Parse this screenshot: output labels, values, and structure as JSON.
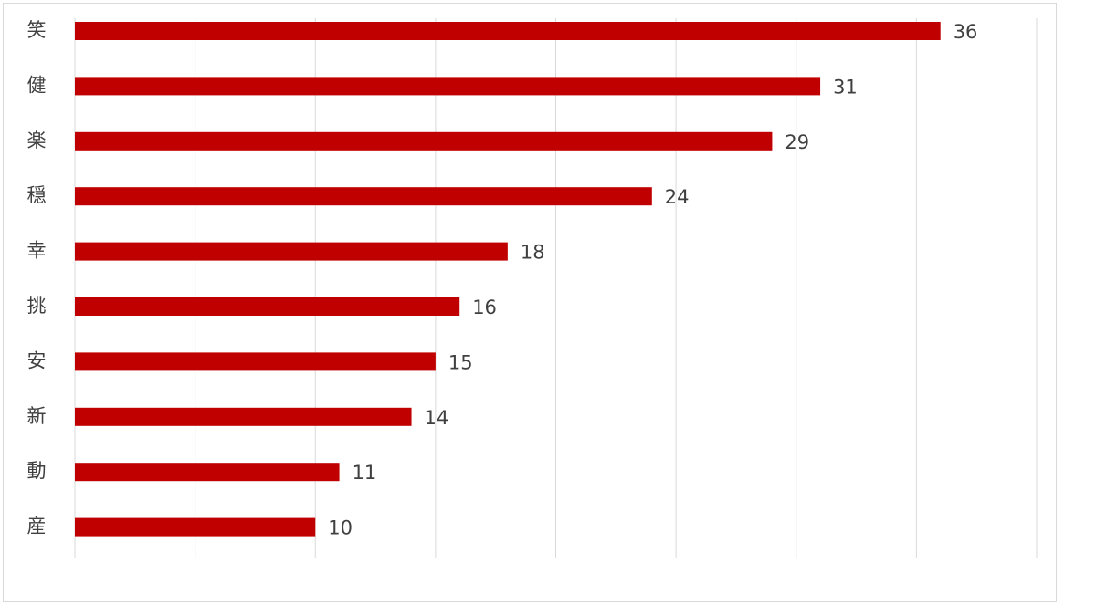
{
  "chart_data": {
    "type": "hbar",
    "categories": [
      "笑",
      "健",
      "楽",
      "穏",
      "幸",
      "挑",
      "安",
      "新",
      "動",
      "産"
    ],
    "values": [
      36,
      31,
      29,
      24,
      18,
      16,
      15,
      14,
      11,
      10
    ],
    "color": "#c00000",
    "xlim": [
      0,
      40
    ],
    "xticks": [
      0,
      5,
      10,
      15,
      20,
      25,
      30,
      35,
      40
    ],
    "grid": true
  }
}
